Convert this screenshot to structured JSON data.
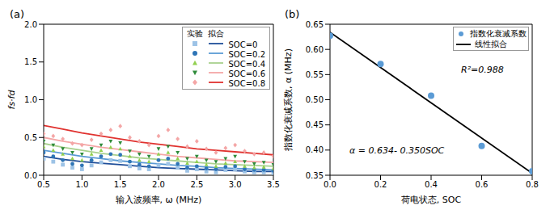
{
  "chart_data": [
    {
      "type": "scatter",
      "x_label": "输入波频率, ω (MHz)",
      "y_label": "fs·fd",
      "annotations": [
        "(a)"
      ],
      "legend": "upper right",
      "legend_headers": [
        "实验",
        "拟合"
      ],
      "grid": false,
      "xlim": [
        0.5,
        3.5
      ],
      "xticks": [
        0.5,
        {
          "value": 1,
          "label": "1.0"
        },
        1.5,
        {
          "value": 2,
          "label": "2.0"
        },
        2.5,
        {
          "value": 3,
          "label": "3.0"
        },
        3.5
      ],
      "ylim": [
        0,
        2
      ],
      "yticks": [
        {
          "value": 0,
          "label": "0.0"
        },
        0.5,
        {
          "value": 1,
          "label": "1.0"
        },
        1.5,
        {
          "value": 2,
          "label": "2.0"
        }
      ],
      "series": [
        {
          "name": "SOC=0",
          "type": "scatter",
          "marker": "square",
          "color": "#9dc3e6",
          "x": [
            0.5,
            0.625,
            0.75,
            0.875,
            1.0,
            1.125,
            1.25,
            1.375,
            1.5,
            1.625,
            1.75,
            1.875,
            2.0,
            2.125,
            2.25,
            2.375,
            2.5,
            2.625,
            2.75,
            2.875,
            3.0,
            3.125,
            3.25,
            3.375,
            3.5
          ],
          "values": [
            0.22,
            0.18,
            0.14,
            0.1,
            0.08,
            0.13,
            0.17,
            0.2,
            0.19,
            0.12,
            0.09,
            0.08,
            0.13,
            0.15,
            0.1,
            0.06,
            0.08,
            0.05,
            0.04,
            0.07,
            0.08,
            0.05,
            0.04,
            0.04,
            0.03
          ]
        },
        {
          "name": "SOC=0.2",
          "type": "scatter",
          "marker": "circle",
          "color": "#2e75b6",
          "x": [
            0.5,
            0.625,
            0.75,
            0.875,
            1.0,
            1.125,
            1.25,
            1.375,
            1.5,
            1.625,
            1.75,
            1.875,
            2.0,
            2.125,
            2.25,
            2.375,
            2.5,
            2.625,
            2.75,
            2.875,
            3.0,
            3.125,
            3.25,
            3.375,
            3.5
          ],
          "values": [
            0.3,
            0.25,
            0.2,
            0.15,
            0.13,
            0.2,
            0.25,
            0.28,
            0.27,
            0.18,
            0.14,
            0.12,
            0.2,
            0.22,
            0.15,
            0.1,
            0.12,
            0.09,
            0.08,
            0.11,
            0.12,
            0.08,
            0.07,
            0.07,
            0.06
          ]
        },
        {
          "name": "SOC=0.4",
          "type": "scatter",
          "marker": "triangle",
          "color": "#92d050",
          "x": [
            0.5,
            0.625,
            0.75,
            0.875,
            1.0,
            1.125,
            1.25,
            1.375,
            1.5,
            1.625,
            1.75,
            1.875,
            2.0,
            2.125,
            2.25,
            2.375,
            2.5,
            2.625,
            2.75,
            2.875,
            3.0,
            3.125,
            3.25,
            3.375,
            3.5
          ],
          "values": [
            0.38,
            0.33,
            0.28,
            0.22,
            0.2,
            0.28,
            0.33,
            0.37,
            0.35,
            0.25,
            0.2,
            0.18,
            0.28,
            0.3,
            0.22,
            0.16,
            0.18,
            0.14,
            0.12,
            0.16,
            0.18,
            0.12,
            0.1,
            0.11,
            0.09
          ]
        },
        {
          "name": "SOC=0.6",
          "type": "scatter",
          "marker": "triangle-down",
          "color": "#2e8b3a",
          "x": [
            0.5,
            0.625,
            0.75,
            0.875,
            1.0,
            1.125,
            1.25,
            1.375,
            1.5,
            1.625,
            1.75,
            1.875,
            2.0,
            2.125,
            2.25,
            2.375,
            2.5,
            2.625,
            2.75,
            2.875,
            3.0,
            3.125,
            3.25,
            3.375,
            3.5
          ],
          "values": [
            0.45,
            0.4,
            0.35,
            0.3,
            0.28,
            0.35,
            0.4,
            0.45,
            0.43,
            0.32,
            0.28,
            0.25,
            0.35,
            0.38,
            0.3,
            0.22,
            0.25,
            0.2,
            0.18,
            0.22,
            0.25,
            0.18,
            0.15,
            0.17,
            0.14
          ]
        },
        {
          "name": "SOC=0.8",
          "type": "scatter",
          "marker": "diamond",
          "color": "#f4a6a6",
          "x": [
            0.5,
            0.625,
            0.75,
            0.875,
            1.0,
            1.125,
            1.25,
            1.375,
            1.5,
            1.625,
            1.75,
            1.875,
            2.0,
            2.125,
            2.25,
            2.375,
            2.5,
            2.625,
            2.75,
            2.875,
            3.0,
            3.125,
            3.25,
            3.375,
            3.5
          ],
          "values": [
            0.55,
            0.52,
            0.48,
            0.42,
            0.4,
            0.47,
            0.55,
            0.6,
            0.65,
            0.5,
            0.45,
            0.4,
            0.52,
            0.6,
            0.48,
            0.38,
            0.45,
            0.35,
            0.3,
            0.36,
            0.4,
            0.32,
            0.28,
            0.3,
            0.25
          ]
        },
        {
          "name": "SOC=0",
          "type": "line",
          "color": "#1f4e99",
          "x": [
            0.5,
            0.75,
            1.0,
            1.25,
            1.5,
            1.75,
            2.0,
            2.25,
            2.5,
            2.75,
            3.0,
            3.25,
            3.5
          ],
          "values": [
            0.25,
            0.21,
            0.18,
            0.16,
            0.14,
            0.12,
            0.1,
            0.09,
            0.08,
            0.07,
            0.06,
            0.05,
            0.05
          ]
        },
        {
          "name": "SOC=0.2",
          "type": "line",
          "color": "#5b9bd5",
          "x": [
            0.5,
            0.75,
            1.0,
            1.25,
            1.5,
            1.75,
            2.0,
            2.25,
            2.5,
            2.75,
            3.0,
            3.25,
            3.5
          ],
          "values": [
            0.33,
            0.29,
            0.25,
            0.22,
            0.19,
            0.17,
            0.15,
            0.13,
            0.12,
            0.1,
            0.09,
            0.08,
            0.07
          ]
        },
        {
          "name": "SOC=0.4",
          "type": "line",
          "color": "#a9d18e",
          "x": [
            0.5,
            0.75,
            1.0,
            1.25,
            1.5,
            1.75,
            2.0,
            2.25,
            2.5,
            2.75,
            3.0,
            3.25,
            3.5
          ],
          "values": [
            0.42,
            0.37,
            0.33,
            0.29,
            0.26,
            0.23,
            0.21,
            0.19,
            0.17,
            0.15,
            0.14,
            0.13,
            0.12
          ]
        },
        {
          "name": "SOC=0.6",
          "type": "line",
          "color": "#f4a6a6",
          "x": [
            0.5,
            0.75,
            1.0,
            1.25,
            1.5,
            1.75,
            2.0,
            2.25,
            2.5,
            2.75,
            3.0,
            3.25,
            3.5
          ],
          "values": [
            0.5,
            0.45,
            0.41,
            0.37,
            0.34,
            0.31,
            0.28,
            0.25,
            0.23,
            0.21,
            0.19,
            0.18,
            0.17
          ]
        },
        {
          "name": "SOC=0.8",
          "type": "line",
          "color": "#e0322f",
          "x": [
            0.5,
            0.75,
            1.0,
            1.25,
            1.5,
            1.75,
            2.0,
            2.25,
            2.5,
            2.75,
            3.0,
            3.25,
            3.5
          ],
          "values": [
            0.66,
            0.61,
            0.56,
            0.52,
            0.48,
            0.44,
            0.41,
            0.38,
            0.35,
            0.33,
            0.31,
            0.29,
            0.27
          ]
        }
      ]
    },
    {
      "type": "scatter",
      "x_label": "荷电状态, SOC",
      "y_label": "指数化衰减系数, α (MHz)",
      "annotations": [
        "(b)",
        "R²=0.988",
        "α = 0.634- 0.350SOC"
      ],
      "legend": "upper right",
      "grid": false,
      "xlim": [
        0,
        0.8
      ],
      "xticks": [
        {
          "value": 0,
          "label": "0.0"
        },
        0.2,
        0.4,
        0.6,
        0.8
      ],
      "ylim": [
        0.35,
        0.65
      ],
      "yticks": [
        0.35,
        {
          "value": 0.4,
          "label": "0.40"
        },
        0.45,
        {
          "value": 0.5,
          "label": "0.50"
        },
        0.55,
        {
          "value": 0.6,
          "label": "0.60"
        },
        0.65
      ],
      "series": [
        {
          "name": "指数化衰减系数",
          "type": "scatter",
          "marker": "circle",
          "color": "#5b9bd5",
          "x": [
            0,
            0.2,
            0.4,
            0.6,
            0.8
          ],
          "values": [
            0.627,
            0.571,
            0.508,
            0.408,
            0.358
          ]
        },
        {
          "name": "线性拟合",
          "type": "line",
          "color": "#000000",
          "x": [
            0,
            0.8
          ],
          "values": [
            0.634,
            0.354
          ]
        }
      ]
    }
  ]
}
